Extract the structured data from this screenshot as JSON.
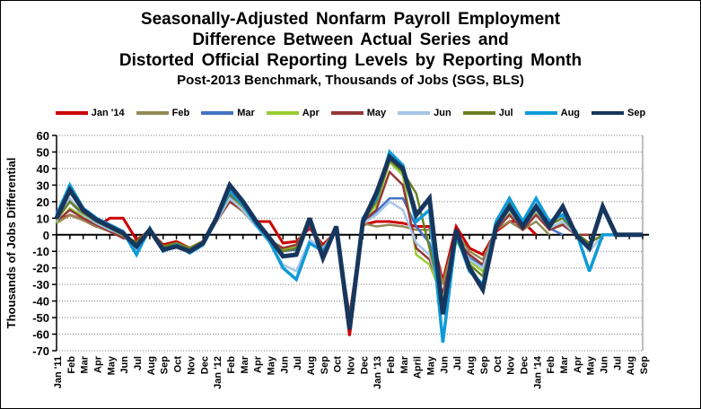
{
  "header": {
    "title_line1": "Seasonally-Adjusted Nonfarm Payroll Employment",
    "title_line2": "Difference Between Actual Series and",
    "title_line3": "Distorted Official Reporting Levels by Reporting Month",
    "subtitle": "Post-2013 Benchmark, Thousands of Jobs (SGS, BLS)"
  },
  "chart_data": {
    "type": "line",
    "title": "Seasonally-Adjusted Nonfarm Payroll Employment Difference Between Actual Series and Distorted Official Reporting Levels by Reporting Month",
    "subtitle": "Post-2013 Benchmark, Thousands of Jobs (SGS, BLS)",
    "ylabel": "Thousands of Jobs Differential",
    "ylim": [
      -70,
      60
    ],
    "ytick_step": 10,
    "grid": "horizontal-dotted",
    "legend_position": "top",
    "categories": [
      "Jan '11",
      "Feb",
      "Mar",
      "Apr",
      "May",
      "Jun",
      "Jul",
      "Aug",
      "Sep",
      "Oct",
      "Nov",
      "Dec",
      "Jan '12",
      "Feb",
      "Mar",
      "Apr",
      "May",
      "Jun",
      "Jul",
      "Aug",
      "Sep",
      "Oct",
      "Nov",
      "Dec",
      "Jan '13",
      "Feb",
      "Mar",
      "April",
      "May",
      "Jun",
      "Jul",
      "Aug",
      "Sep",
      "Oct",
      "Nov",
      "Dec",
      "Jan '14",
      "Feb",
      "Mar",
      "Apr",
      "May",
      "Jun",
      "Jul",
      "Aug",
      "Sep"
    ],
    "series": [
      {
        "name": "Jan '14",
        "color": "#CC0000",
        "stroke_width": 3,
        "values": [
          8,
          12,
          9,
          5,
          10,
          10,
          -3,
          2,
          -6,
          -4,
          -8,
          -4,
          8,
          23,
          15,
          8,
          8,
          -5,
          -4,
          4,
          -6,
          2,
          -61,
          6,
          8,
          8,
          7,
          5,
          5,
          -28,
          5,
          -8,
          -12,
          2,
          8,
          8,
          0
        ]
      },
      {
        "name": "Feb",
        "color": "#948A54",
        "stroke_width": 2.5,
        "values": [
          7,
          12,
          9,
          5,
          2,
          -2,
          -4,
          2,
          -7,
          -5,
          -8,
          -4,
          8,
          20,
          14,
          5,
          -3,
          -8,
          -6,
          8,
          -8,
          4,
          -50,
          7,
          5,
          6,
          5,
          3,
          3,
          -30,
          1,
          -10,
          -15,
          3,
          8,
          3,
          8,
          0
        ]
      },
      {
        "name": "Mar",
        "color": "#4472C4",
        "stroke_width": 2.5,
        "values": [
          9,
          20,
          12,
          7,
          3,
          0,
          -6,
          3,
          -8,
          -5,
          -9,
          -5,
          9,
          24,
          16,
          6,
          -4,
          -10,
          -9,
          6,
          -9,
          3,
          -53,
          8,
          14,
          22,
          22,
          5,
          -5,
          -38,
          -2,
          -14,
          -19,
          4,
          13,
          4,
          13,
          4,
          0
        ]
      },
      {
        "name": "Apr",
        "color": "#99CC33",
        "stroke_width": 2.5,
        "values": [
          7,
          16,
          11,
          7,
          3,
          -1,
          -4,
          3,
          -7,
          -5,
          -8,
          -4,
          8,
          22,
          16,
          6,
          -3,
          -9,
          -7,
          6,
          -9,
          3,
          -52,
          8,
          18,
          44,
          36,
          -12,
          -18,
          -38,
          -4,
          -16,
          -22,
          4,
          14,
          4,
          14,
          4,
          7,
          0
        ]
      },
      {
        "name": "May",
        "color": "#953735",
        "stroke_width": 2.5,
        "values": [
          8,
          15,
          10,
          6,
          2,
          -2,
          -4,
          2,
          -8,
          -6,
          -9,
          -5,
          8,
          20,
          15,
          6,
          -4,
          -8,
          -6,
          5,
          -8,
          2,
          -48,
          8,
          15,
          38,
          30,
          -8,
          -15,
          -35,
          -3,
          -12,
          -18,
          3,
          12,
          3,
          12,
          3,
          6,
          0,
          0
        ]
      },
      {
        "name": "Jun",
        "color": "#A5C6E9",
        "stroke_width": 2.5,
        "values": [
          8,
          22,
          12,
          7,
          3,
          0,
          -10,
          3,
          -8,
          -5,
          -9,
          -5,
          8,
          22,
          15,
          5,
          -5,
          -18,
          -22,
          -3,
          -8,
          2,
          -52,
          7,
          12,
          20,
          15,
          -5,
          -12,
          -40,
          -2,
          -15,
          -20,
          4,
          15,
          4,
          15,
          4,
          8,
          0,
          -10,
          0
        ]
      },
      {
        "name": "Jul",
        "color": "#6B8023",
        "stroke_width": 2.5,
        "values": [
          9,
          20,
          13,
          8,
          4,
          0,
          -5,
          4,
          -7,
          -5,
          -8,
          -4,
          9,
          25,
          17,
          7,
          -3,
          -10,
          -8,
          7,
          -10,
          4,
          -50,
          9,
          20,
          45,
          38,
          25,
          -8,
          -42,
          2,
          -18,
          -25,
          6,
          20,
          6,
          18,
          6,
          10,
          1,
          -5,
          0,
          0
        ]
      },
      {
        "name": "Aug",
        "color": "#0F9BD8",
        "stroke_width": 3.5,
        "values": [
          12,
          30,
          16,
          10,
          6,
          2,
          -12,
          4,
          -10,
          -6,
          -11,
          -6,
          9,
          27,
          18,
          6,
          -4,
          -20,
          -27,
          -5,
          -10,
          3,
          -55,
          10,
          22,
          50,
          42,
          8,
          15,
          -65,
          0,
          -22,
          -30,
          8,
          22,
          8,
          22,
          8,
          12,
          2,
          -22,
          0,
          0,
          0
        ]
      },
      {
        "name": "Sep",
        "color": "#17365D",
        "stroke_width": 5,
        "values": [
          10,
          27,
          15,
          9,
          5,
          1,
          -7,
          3,
          -9,
          -7,
          -10,
          -5,
          10,
          30,
          20,
          8,
          -2,
          -13,
          -12,
          10,
          -14,
          5,
          -57,
          8,
          25,
          47,
          40,
          12,
          22,
          -48,
          3,
          -20,
          -33,
          5,
          17,
          5,
          17,
          5,
          17,
          0,
          -8,
          17,
          0,
          0,
          0
        ]
      }
    ]
  }
}
